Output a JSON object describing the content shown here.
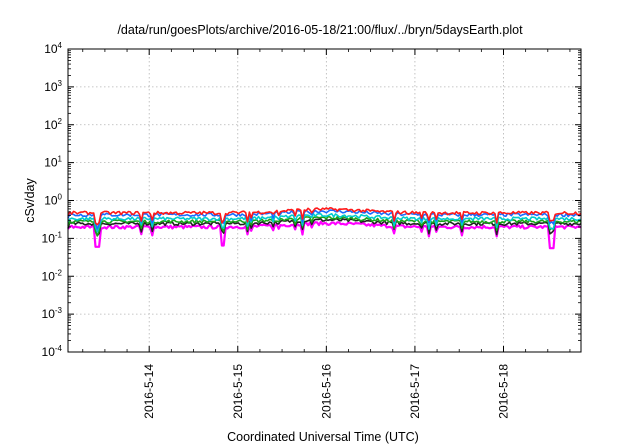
{
  "chart_data": {
    "type": "line",
    "title": "/data/run/goesPlots/archive/2016-05-18/21:00/flux/../bryn/5daysEarth.plot",
    "xlabel": "Coordinated Universal Time (UTC)",
    "ylabel": "cSv/day",
    "yscale": "log",
    "ylim": [
      0.0001,
      10000
    ],
    "xlim": [
      "2016-05-13T02:00",
      "2016-05-18T21:00"
    ],
    "grid": true,
    "x_ticks": [
      {
        "value": "2016-05-14T00:00",
        "label": "2016-5-14"
      },
      {
        "value": "2016-05-15T00:00",
        "label": "2016-5-15"
      },
      {
        "value": "2016-05-16T00:00",
        "label": "2016-5-16"
      },
      {
        "value": "2016-05-17T00:00",
        "label": "2016-5-17"
      },
      {
        "value": "2016-05-18T00:00",
        "label": "2016-5-18"
      }
    ],
    "y_ticks": [
      {
        "value": 0.0001,
        "base": "10",
        "exp": "-4"
      },
      {
        "value": 0.001,
        "base": "10",
        "exp": "-3"
      },
      {
        "value": 0.01,
        "base": "10",
        "exp": "-2"
      },
      {
        "value": 0.1,
        "base": "10",
        "exp": "-1"
      },
      {
        "value": 1,
        "base": "10",
        "exp": "0"
      },
      {
        "value": 10,
        "base": "10",
        "exp": "1"
      },
      {
        "value": 100,
        "base": "10",
        "exp": "2"
      },
      {
        "value": 1000,
        "base": "10",
        "exp": "3"
      },
      {
        "value": 10000,
        "base": "10",
        "exp": "4"
      }
    ],
    "series_style": {
      "red": {
        "color": "#ff1a1a",
        "base": 0.47
      },
      "blue": {
        "color": "#1a6cff",
        "base": 0.42
      },
      "cyan": {
        "color": "#00cccc",
        "base": 0.33
      },
      "green": {
        "color": "#1aa31a",
        "base": 0.28
      },
      "black": {
        "color": "#222222",
        "base": 0.245
      },
      "magenta": {
        "color": "#ff00ff",
        "base": 0.2
      }
    },
    "notable_dips": [
      {
        "time": "2016-05-13T10:00",
        "value": 0.06
      },
      {
        "time": "2016-05-14T20:00",
        "value": 0.065
      },
      {
        "time": "2016-05-18T13:00",
        "value": 0.055
      }
    ]
  }
}
